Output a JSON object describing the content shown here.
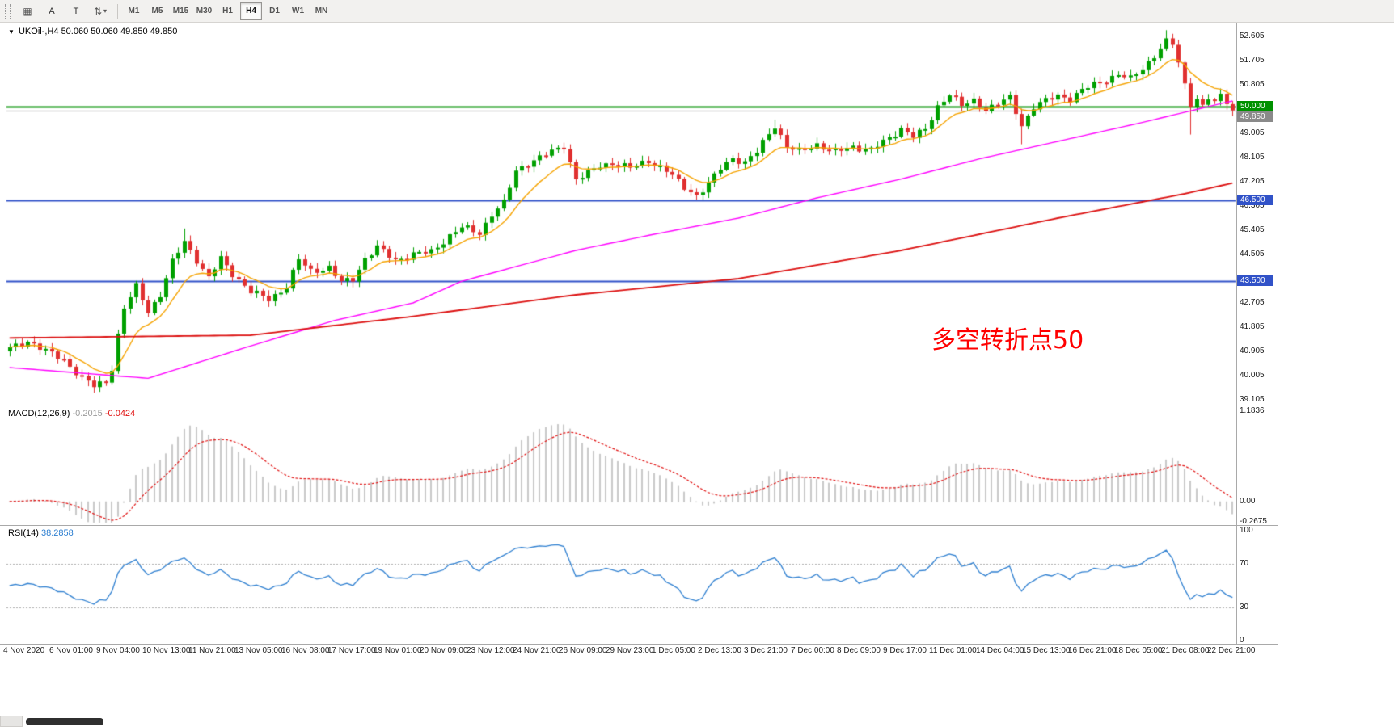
{
  "icons": {
    "grid": "▦",
    "arrows": "⇅",
    "dropdown_caret": "▾",
    "title_caret": "▼"
  },
  "toolbar": {
    "buttons": {
      "a": "A",
      "t": "T"
    },
    "timeframes": [
      "M1",
      "M5",
      "M15",
      "M30",
      "H1",
      "H4",
      "D1",
      "W1",
      "MN"
    ],
    "active_timeframe": "H4"
  },
  "header": {
    "symbol": "UKOil-,H4",
    "ohlc": "50.060 50.060 49.850 49.850"
  },
  "annotation": {
    "text": "多空转折点50",
    "color": "#FF0000"
  },
  "price_axis": {
    "labels": [
      "52.605",
      "51.705",
      "50.805",
      "49.005",
      "48.105",
      "47.205",
      "46.305",
      "45.405",
      "44.505",
      "42.705",
      "41.805",
      "40.905",
      "40.005",
      "39.105"
    ]
  },
  "time_axis": {
    "labels": [
      "4 Nov 2020",
      "6 Nov 01:00",
      "9 Nov 04:00",
      "10 Nov 13:00",
      "11 Nov 21:00",
      "13 Nov 05:00",
      "16 Nov 08:00",
      "17 Nov 17:00",
      "19 Nov 01:00",
      "20 Nov 09:00",
      "23 Nov 12:00",
      "24 Nov 21:00",
      "26 Nov 09:00",
      "29 Nov 23:00",
      "1 Dec 05:00",
      "2 Dec 13:00",
      "3 Dec 21:00",
      "7 Dec 00:00",
      "8 Dec 09:00",
      "9 Dec 17:00",
      "11 Dec 01:00",
      "14 Dec 04:00",
      "15 Dec 13:00",
      "16 Dec 21:00",
      "18 Dec 05:00",
      "21 Dec 08:00",
      "22 Dec 21:00"
    ]
  },
  "macd_panel": {
    "name": "MACD(12,26,9)",
    "value_main": "-0.2015",
    "value_signal": "-0.0424",
    "axis_top": "1.1836",
    "axis_zero": "0.00",
    "axis_bottom": "-0.2675"
  },
  "rsi_panel": {
    "name": "RSI(14)",
    "value": "38.2858",
    "axis": [
      "100",
      "70",
      "30",
      "0"
    ]
  },
  "chart_data": {
    "type": "candlestick",
    "symbol": "UKOil-",
    "timeframe": "H4",
    "bars": 204,
    "price_range": [
      38.95,
      53.05
    ],
    "current_ohlc": [
      50.06,
      50.06,
      49.85,
      49.85
    ],
    "candle_up_color": "#00A000",
    "candle_down_color": "#E03030",
    "close_anchors": [
      [
        0,
        41.0
      ],
      [
        3,
        41.3
      ],
      [
        6,
        40.9
      ],
      [
        9,
        40.6
      ],
      [
        12,
        39.9
      ],
      [
        14,
        39.6
      ],
      [
        16,
        39.8
      ],
      [
        17,
        40.3
      ],
      [
        18,
        41.5
      ],
      [
        19,
        42.5
      ],
      [
        21,
        43.3
      ],
      [
        23,
        42.4
      ],
      [
        25,
        43.0
      ],
      [
        27,
        44.2
      ],
      [
        29,
        45.0
      ],
      [
        31,
        44.3
      ],
      [
        33,
        43.6
      ],
      [
        35,
        44.35
      ],
      [
        37,
        43.8
      ],
      [
        40,
        43.1
      ],
      [
        43,
        42.85
      ],
      [
        46,
        43.3
      ],
      [
        48,
        44.3
      ],
      [
        50,
        43.9
      ],
      [
        53,
        44.0
      ],
      [
        55,
        43.45
      ],
      [
        57,
        43.6
      ],
      [
        59,
        44.35
      ],
      [
        61,
        44.75
      ],
      [
        64,
        44.3
      ],
      [
        67,
        44.5
      ],
      [
        70,
        44.6
      ],
      [
        73,
        45.2
      ],
      [
        75,
        45.5
      ],
      [
        78,
        45.3
      ],
      [
        80,
        46.0
      ],
      [
        82,
        46.4
      ],
      [
        84,
        47.6
      ],
      [
        86,
        47.9
      ],
      [
        88,
        48.1
      ],
      [
        90,
        48.3
      ],
      [
        92,
        48.55
      ],
      [
        94,
        47.3
      ],
      [
        96,
        47.5
      ],
      [
        98,
        47.8
      ],
      [
        100,
        47.9
      ],
      [
        103,
        47.7
      ],
      [
        106,
        48.0
      ],
      [
        109,
        47.6
      ],
      [
        112,
        47.0
      ],
      [
        114,
        46.7
      ],
      [
        116,
        47.1
      ],
      [
        118,
        47.7
      ],
      [
        120,
        48.1
      ],
      [
        122,
        47.9
      ],
      [
        124,
        48.3
      ],
      [
        126,
        49.0
      ],
      [
        127,
        49.3
      ],
      [
        129,
        48.5
      ],
      [
        131,
        48.3
      ],
      [
        134,
        48.6
      ],
      [
        137,
        48.3
      ],
      [
        140,
        48.5
      ],
      [
        143,
        48.4
      ],
      [
        146,
        48.8
      ],
      [
        148,
        49.2
      ],
      [
        150,
        48.9
      ],
      [
        152,
        49.1
      ],
      [
        154,
        50.0
      ],
      [
        156,
        50.5
      ],
      [
        158,
        50.0
      ],
      [
        160,
        50.2
      ],
      [
        162,
        49.9
      ],
      [
        164,
        50.1
      ],
      [
        166,
        50.3
      ],
      [
        168,
        49.3
      ],
      [
        170,
        50.0
      ],
      [
        172,
        50.2
      ],
      [
        174,
        50.4
      ],
      [
        176,
        50.3
      ],
      [
        178,
        50.6
      ],
      [
        180,
        50.8
      ],
      [
        182,
        51.0
      ],
      [
        184,
        51.2
      ],
      [
        186,
        51.0
      ],
      [
        188,
        51.4
      ],
      [
        190,
        51.9
      ],
      [
        192,
        52.4
      ],
      [
        193,
        52.3
      ],
      [
        194,
        51.6
      ],
      [
        195,
        50.8
      ],
      [
        196,
        50.1
      ],
      [
        197,
        50.3
      ],
      [
        198,
        50.0
      ],
      [
        199,
        50.3
      ],
      [
        200,
        50.1
      ],
      [
        201,
        50.4
      ],
      [
        202,
        50.2
      ],
      [
        203,
        49.85
      ]
    ],
    "long_upper_wicks": [
      [
        29,
        0.4
      ],
      [
        127,
        0.2
      ],
      [
        192,
        0.2
      ]
    ],
    "long_lower_wicks": [
      [
        168,
        0.5
      ],
      [
        196,
        0.8
      ]
    ],
    "overlays": {
      "ma_fast": {
        "color": "#F5A300",
        "type": "ema",
        "period": 10
      },
      "ma_mid": {
        "color": "#FF00FF",
        "anchors": [
          [
            0,
            40.3
          ],
          [
            23,
            39.9
          ],
          [
            40,
            41.1
          ],
          [
            54,
            42.05
          ],
          [
            67,
            42.7
          ],
          [
            75,
            43.5
          ],
          [
            94,
            44.65
          ],
          [
            107,
            45.25
          ],
          [
            121,
            45.85
          ],
          [
            134,
            46.6
          ],
          [
            148,
            47.3
          ],
          [
            161,
            48.05
          ],
          [
            174,
            48.7
          ],
          [
            188,
            49.4
          ],
          [
            201,
            50.1
          ],
          [
            203,
            50.2
          ]
        ]
      },
      "ma_slow": {
        "color": "#DC1010",
        "anchors": [
          [
            0,
            41.4
          ],
          [
            40,
            41.5
          ],
          [
            67,
            42.2
          ],
          [
            94,
            43.0
          ],
          [
            121,
            43.6
          ],
          [
            148,
            44.65
          ],
          [
            174,
            45.85
          ],
          [
            195,
            46.75
          ],
          [
            203,
            47.15
          ]
        ]
      }
    },
    "hlines": [
      {
        "price": 50.0,
        "label": "50.000",
        "color": "#009100",
        "width": 2
      },
      {
        "price": 46.5,
        "label": "46.500",
        "color": "#3152C8",
        "width": 2
      },
      {
        "price": 43.5,
        "label": "43.500",
        "color": "#3152C8",
        "width": 2
      },
      {
        "price": 49.85,
        "label": "49.850",
        "color": "#8A8A8A",
        "width": 1
      }
    ],
    "macd": {
      "fast": 12,
      "slow": 26,
      "signal": 9,
      "current_main": -0.2015,
      "current_signal": -0.0424,
      "scale": [
        -0.2675,
        1.1836
      ],
      "histogram_color": "#C9C9C9",
      "signal_color": "#E01010"
    },
    "rsi": {
      "period": 14,
      "current": 38.2858,
      "scale": [
        0,
        100
      ],
      "levels": [
        70,
        30
      ],
      "color": "#2E7FD0"
    }
  }
}
